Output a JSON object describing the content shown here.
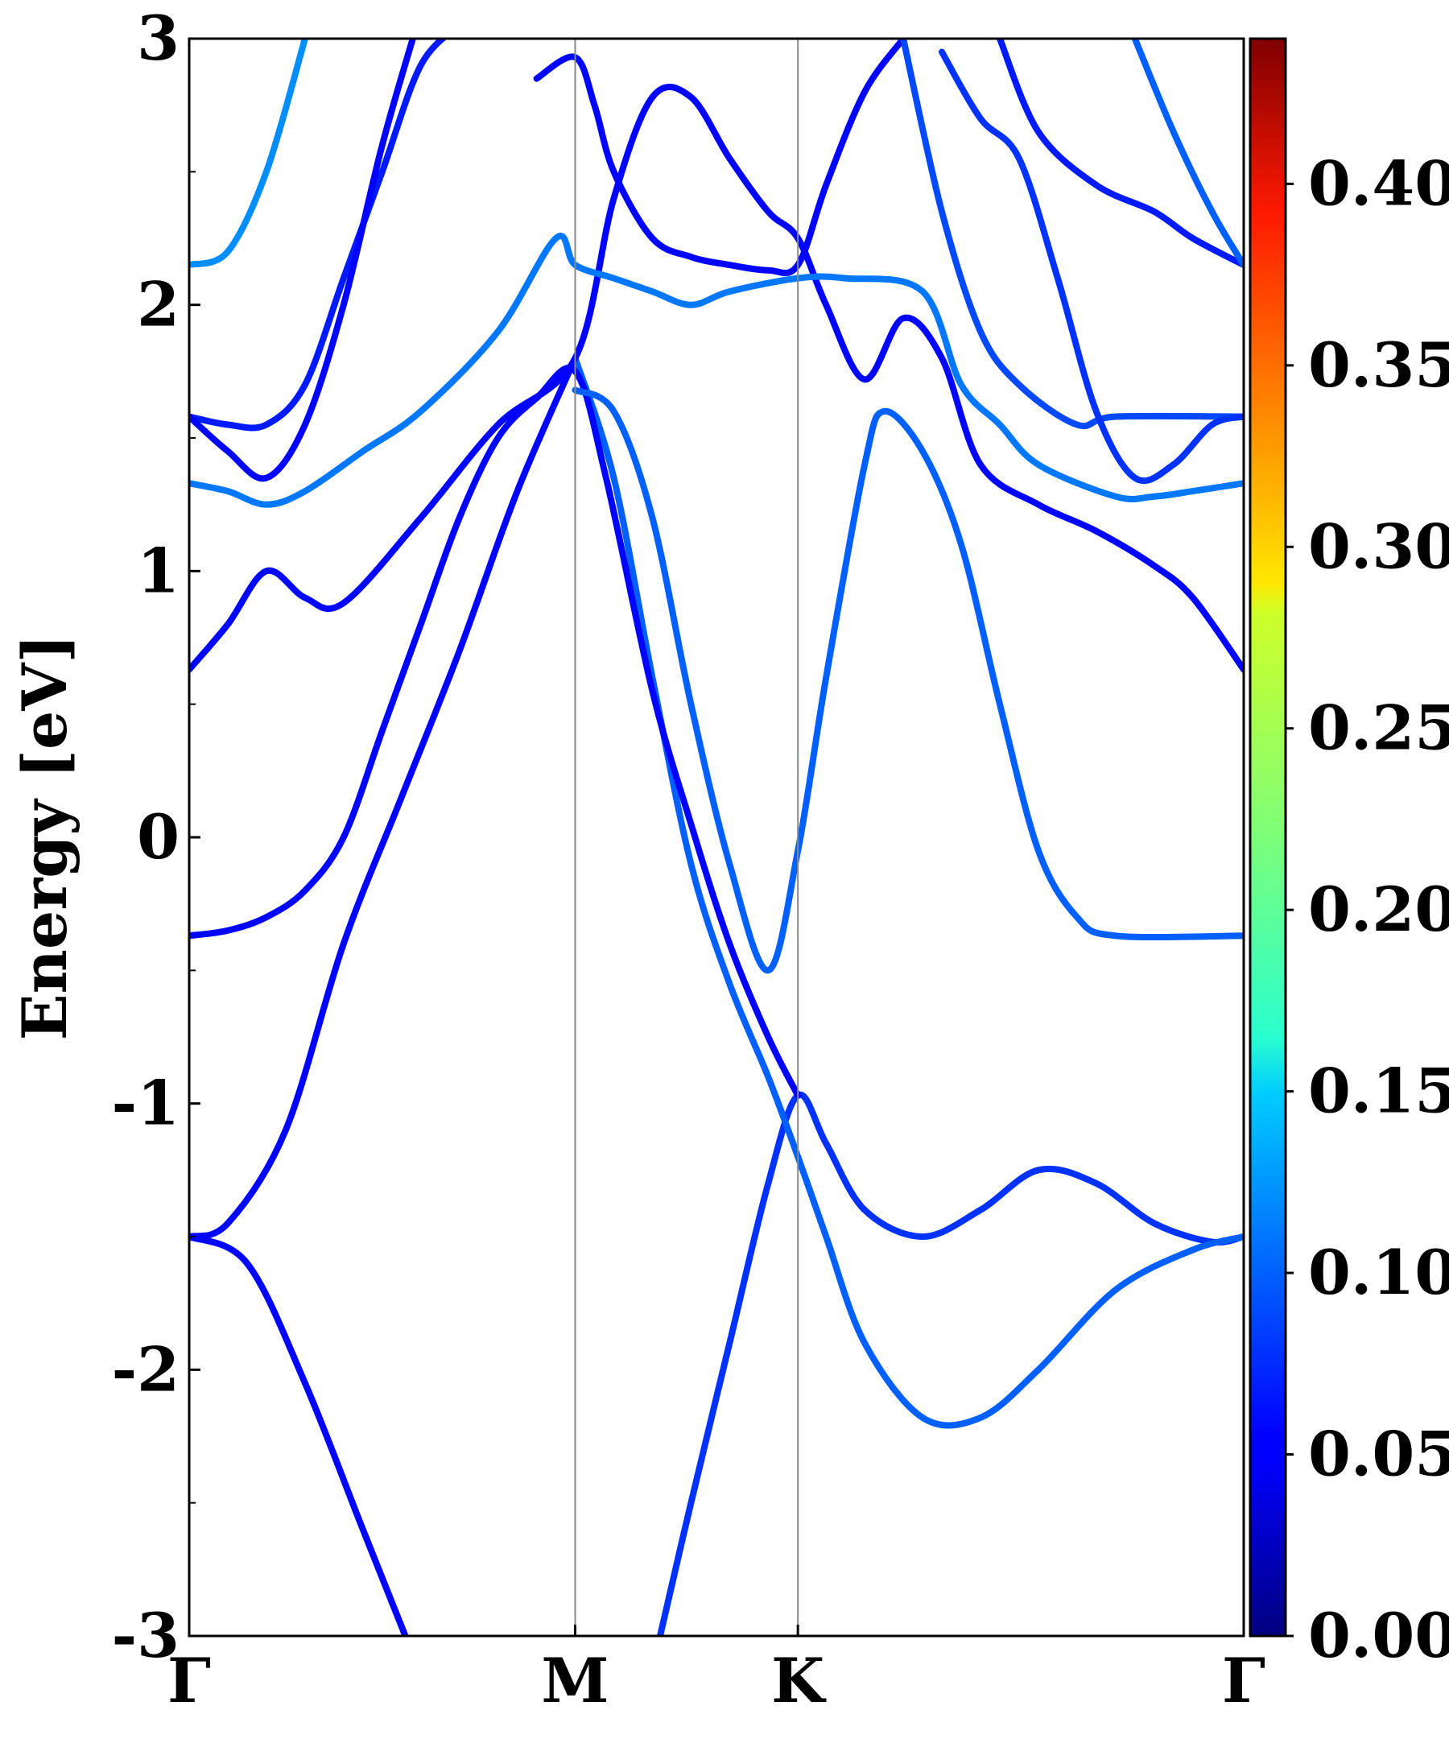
{
  "chart_data": {
    "type": "line",
    "title": "",
    "ylabel": "Energy [eV]",
    "xlabel": "",
    "ylim": [
      -3,
      3
    ],
    "yticks": [
      "3",
      "2",
      "1",
      "0",
      "-1",
      "-2",
      "-3"
    ],
    "x_kpoints": [
      {
        "label": "Γ",
        "pos": 0.0
      },
      {
        "label": "M",
        "pos": 1.0
      },
      {
        "label": "K",
        "pos": 1.577
      },
      {
        "label": "Γ",
        "pos": 2.732
      }
    ],
    "xlim": [
      0,
      2.732
    ],
    "colorbar": {
      "colormap": "jet",
      "range": [
        0,
        0.44
      ],
      "ticks": [
        "0.00",
        "0.05",
        "0.10",
        "0.15",
        "0.20",
        "0.25",
        "0.30",
        "0.35",
        "0.40"
      ]
    },
    "series": [
      {
        "weight": 0.03,
        "points": [
          [
            0,
            -1.5
          ],
          [
            0.15,
            -1.6
          ],
          [
            0.3,
            -2.05
          ],
          [
            0.45,
            -2.6
          ],
          [
            0.56,
            -3.0
          ]
        ]
      },
      {
        "weight": 0.03,
        "points": [
          [
            0,
            -1.5
          ],
          [
            0.1,
            -1.45
          ],
          [
            0.25,
            -1.1
          ],
          [
            0.4,
            -0.4
          ],
          [
            0.55,
            0.15
          ],
          [
            0.7,
            0.7
          ],
          [
            0.85,
            1.3
          ],
          [
            1.0,
            1.8
          ]
        ]
      },
      {
        "weight": 0.05,
        "points": [
          [
            1.22,
            -3.0
          ],
          [
            1.3,
            -2.5
          ],
          [
            1.4,
            -1.9
          ],
          [
            1.5,
            -1.3
          ],
          [
            1.577,
            -0.97
          ],
          [
            1.65,
            -1.15
          ],
          [
            1.75,
            -1.4
          ],
          [
            1.9,
            -1.5
          ],
          [
            2.05,
            -1.4
          ],
          [
            2.2,
            -1.25
          ],
          [
            2.35,
            -1.3
          ],
          [
            2.5,
            -1.45
          ],
          [
            2.65,
            -1.52
          ],
          [
            2.732,
            -1.5
          ]
        ]
      },
      {
        "weight": 0.07,
        "points": [
          [
            1.0,
            1.8
          ],
          [
            1.1,
            1.35
          ],
          [
            1.2,
            0.6
          ],
          [
            1.3,
            -0.1
          ],
          [
            1.4,
            -0.55
          ],
          [
            1.5,
            -0.9
          ],
          [
            1.577,
            -1.2
          ],
          [
            1.65,
            -1.5
          ],
          [
            1.75,
            -1.9
          ],
          [
            1.9,
            -2.18
          ],
          [
            2.05,
            -2.18
          ],
          [
            2.2,
            -2.0
          ],
          [
            2.4,
            -1.7
          ],
          [
            2.6,
            -1.55
          ],
          [
            2.732,
            -1.5
          ]
        ]
      },
      {
        "weight": 0.03,
        "points": [
          [
            0,
            -0.37
          ],
          [
            0.1,
            -0.35
          ],
          [
            0.2,
            -0.3
          ],
          [
            0.3,
            -0.2
          ],
          [
            0.4,
            0.0
          ],
          [
            0.5,
            0.4
          ],
          [
            0.6,
            0.8
          ],
          [
            0.7,
            1.2
          ],
          [
            0.8,
            1.5
          ],
          [
            0.9,
            1.65
          ],
          [
            1.0,
            1.75
          ],
          [
            1.08,
            1.35
          ],
          [
            1.2,
            0.55
          ],
          [
            1.3,
            0.05
          ],
          [
            1.4,
            -0.4
          ],
          [
            1.5,
            -0.75
          ],
          [
            1.577,
            -0.97
          ]
        ]
      },
      {
        "weight": 0.07,
        "points": [
          [
            1.0,
            1.68
          ],
          [
            1.1,
            1.6
          ],
          [
            1.2,
            1.2
          ],
          [
            1.3,
            0.5
          ],
          [
            1.4,
            -0.1
          ],
          [
            1.5,
            -0.5
          ],
          [
            1.577,
            -0.05
          ],
          [
            1.65,
            0.6
          ],
          [
            1.75,
            1.4
          ],
          [
            1.8,
            1.6
          ],
          [
            1.9,
            1.45
          ],
          [
            2.0,
            1.1
          ],
          [
            2.1,
            0.5
          ],
          [
            2.2,
            -0.05
          ],
          [
            2.3,
            -0.3
          ],
          [
            2.4,
            -0.37
          ],
          [
            2.732,
            -0.37
          ]
        ]
      },
      {
        "weight": 0.03,
        "points": [
          [
            0,
            0.63
          ],
          [
            0.1,
            0.8
          ],
          [
            0.2,
            1.0
          ],
          [
            0.3,
            0.9
          ],
          [
            0.4,
            0.88
          ],
          [
            0.6,
            1.2
          ],
          [
            0.8,
            1.55
          ],
          [
            1.0,
            1.8
          ],
          [
            1.1,
            2.4
          ],
          [
            1.2,
            2.78
          ],
          [
            1.3,
            2.78
          ],
          [
            1.4,
            2.55
          ],
          [
            1.5,
            2.35
          ],
          [
            1.577,
            2.25
          ],
          [
            1.65,
            2.0
          ],
          [
            1.75,
            1.72
          ],
          [
            1.85,
            1.95
          ],
          [
            1.95,
            1.8
          ],
          [
            2.05,
            1.4
          ],
          [
            2.2,
            1.25
          ],
          [
            2.35,
            1.15
          ],
          [
            2.5,
            1.02
          ],
          [
            2.6,
            0.9
          ],
          [
            2.732,
            0.63
          ]
        ]
      },
      {
        "weight": 0.08,
        "points": [
          [
            0,
            1.33
          ],
          [
            0.1,
            1.3
          ],
          [
            0.2,
            1.25
          ],
          [
            0.3,
            1.3
          ],
          [
            0.45,
            1.45
          ],
          [
            0.6,
            1.6
          ],
          [
            0.8,
            1.9
          ],
          [
            0.95,
            2.25
          ],
          [
            1.0,
            2.15
          ],
          [
            1.1,
            2.1
          ],
          [
            1.2,
            2.05
          ],
          [
            1.3,
            2.0
          ],
          [
            1.4,
            2.05
          ],
          [
            1.577,
            2.1
          ],
          [
            1.7,
            2.1
          ],
          [
            1.9,
            2.05
          ],
          [
            2.0,
            1.7
          ],
          [
            2.1,
            1.55
          ],
          [
            2.2,
            1.4
          ],
          [
            2.4,
            1.28
          ],
          [
            2.5,
            1.28
          ],
          [
            2.6,
            1.3
          ],
          [
            2.732,
            1.33
          ]
        ]
      },
      {
        "weight": 0.04,
        "points": [
          [
            0,
            1.58
          ],
          [
            0.1,
            1.55
          ],
          [
            0.2,
            1.55
          ],
          [
            0.3,
            1.7
          ],
          [
            0.4,
            2.1
          ],
          [
            0.5,
            2.5
          ],
          [
            0.6,
            2.9
          ],
          [
            0.7,
            3.05
          ]
        ]
      },
      {
        "weight": 0.03,
        "points": [
          [
            0,
            1.58
          ],
          [
            0.1,
            1.45
          ],
          [
            0.2,
            1.35
          ],
          [
            0.3,
            1.55
          ],
          [
            0.4,
            2.0
          ],
          [
            0.5,
            2.6
          ],
          [
            0.6,
            3.1
          ]
        ]
      },
      {
        "weight": 0.03,
        "points": [
          [
            0.9,
            2.85
          ],
          [
            1.0,
            2.93
          ],
          [
            1.05,
            2.75
          ],
          [
            1.1,
            2.5
          ],
          [
            1.2,
            2.25
          ],
          [
            1.3,
            2.18
          ],
          [
            1.4,
            2.15
          ],
          [
            1.5,
            2.13
          ],
          [
            1.577,
            2.15
          ],
          [
            1.65,
            2.45
          ],
          [
            1.75,
            2.8
          ],
          [
            1.85,
            3.0
          ]
        ]
      },
      {
        "weight": 0.06,
        "points": [
          [
            1.85,
            3.0
          ],
          [
            1.95,
            2.35
          ],
          [
            2.05,
            1.9
          ],
          [
            2.15,
            1.7
          ],
          [
            2.3,
            1.55
          ],
          [
            2.4,
            1.58
          ],
          [
            2.732,
            1.58
          ]
        ]
      },
      {
        "weight": 0.04,
        "points": [
          [
            2.1,
            3.0
          ],
          [
            2.2,
            2.65
          ],
          [
            2.35,
            2.45
          ],
          [
            2.5,
            2.35
          ],
          [
            2.6,
            2.25
          ],
          [
            2.732,
            2.15
          ]
        ]
      },
      {
        "weight": 0.05,
        "points": [
          [
            1.95,
            2.95
          ],
          [
            2.05,
            2.7
          ],
          [
            2.15,
            2.55
          ],
          [
            2.25,
            2.1
          ],
          [
            2.35,
            1.6
          ],
          [
            2.45,
            1.35
          ],
          [
            2.55,
            1.4
          ],
          [
            2.65,
            1.55
          ],
          [
            2.732,
            1.58
          ]
        ]
      },
      {
        "weight": 0.09,
        "points": [
          [
            0,
            2.15
          ],
          [
            0.1,
            2.2
          ],
          [
            0.2,
            2.5
          ],
          [
            0.3,
            3.0
          ]
        ]
      },
      {
        "weight": 0.07,
        "points": [
          [
            2.45,
            3.0
          ],
          [
            2.55,
            2.65
          ],
          [
            2.65,
            2.35
          ],
          [
            2.732,
            2.15
          ]
        ]
      }
    ]
  }
}
